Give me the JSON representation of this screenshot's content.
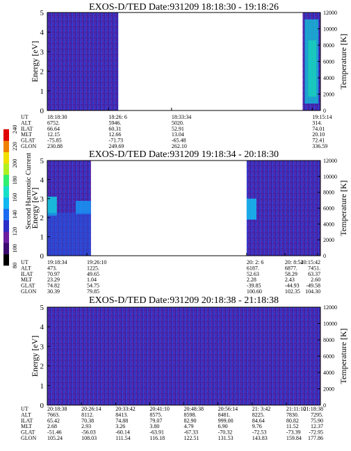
{
  "colorbar": {
    "label": "Second Harmonic Current",
    "ticks": [
      "80",
      "100",
      "120",
      "140",
      "160",
      "180",
      "200",
      "220",
      "240"
    ],
    "colors": [
      "#000000",
      "#3b0a6e",
      "#6a1ea0",
      "#2a2fc8",
      "#1a6cf0",
      "#10b8f0",
      "#18e0c8",
      "#30f070",
      "#b0f020",
      "#f0e000",
      "#f08000",
      "#e00000"
    ]
  },
  "chart_data": [
    {
      "type": "heatmap",
      "title": "EXOS-D/TED Date:931209 18:18:30 - 19:18:26",
      "ylabel": "Energy [eV]",
      "y2label": "Temperature [K]",
      "ylim": [
        0,
        5
      ],
      "y2lim": [
        0,
        12000
      ],
      "yticks": [
        "0",
        "1",
        "2",
        "3",
        "4",
        "5"
      ],
      "y2ticks": [
        "0",
        "2000",
        "4000",
        "6000",
        "8000",
        "10000",
        "12000"
      ],
      "data_segments": [
        [
          0.0,
          0.26
        ],
        [
          0.935,
          1.0
        ]
      ],
      "row_labels": [
        "UT",
        "ALT",
        "ILAT",
        "MLT",
        "GLAT",
        "GLON"
      ],
      "columns": [
        {
          "pos": 0.0,
          "values": [
            "18:18:30",
            "6752.",
            "66.64",
            "12.15",
            "-75.85",
            "230.88"
          ]
        },
        {
          "pos": 0.225,
          "values": [
            "18:26: 6",
            "5946.",
            "60.31",
            "12.66",
            "-71.73",
            "249.69"
          ]
        },
        {
          "pos": 0.455,
          "values": [
            "18:33:34",
            "5020.",
            "52.91",
            "13.04",
            "-65.48",
            "262.10"
          ]
        },
        {
          "pos": 0.97,
          "values": [
            "19:15:14",
            "314.",
            "74.01",
            "20.10",
            "72.41",
            "336.59"
          ]
        }
      ]
    },
    {
      "type": "heatmap",
      "title": "EXOS-D/TED Date:931209 19:18:34 - 20:18:30",
      "ylabel": "Energy [eV]",
      "y2label": "Temperature [K]",
      "ylim": [
        0,
        5
      ],
      "y2lim": [
        0,
        12000
      ],
      "yticks": [
        "0",
        "1",
        "2",
        "3",
        "4",
        "5"
      ],
      "y2ticks": [
        "0",
        "2000",
        "4000",
        "6000",
        "8000",
        "10000",
        "12000"
      ],
      "data_segments": [
        [
          0.0,
          0.16
        ],
        [
          0.73,
          1.0
        ]
      ],
      "row_labels": [
        "UT",
        "ALT",
        "ILAT",
        "MLT",
        "GLAT",
        "GLON"
      ],
      "columns": [
        {
          "pos": 0.0,
          "values": [
            "19:18:34",
            "473.",
            "70.97",
            "23.29",
            "74.82",
            "30.39"
          ]
        },
        {
          "pos": 0.145,
          "values": [
            "19:26:10",
            "1225.",
            "49.65",
            "1.04",
            "54.75",
            "79.85"
          ]
        },
        {
          "pos": 0.73,
          "values": [
            "20: 2: 6",
            "6187.",
            "52.63",
            "2.28",
            "-39.85",
            "100.60"
          ]
        },
        {
          "pos": 0.87,
          "values": [
            "20: 8:54",
            "6877.",
            "58.29",
            "2.43",
            "-44.93",
            "102.35"
          ]
        },
        {
          "pos": 0.99,
          "values": [
            "20:15:42",
            "7451.",
            "63.37",
            "2.60",
            "-49.58",
            "104.30"
          ]
        }
      ]
    },
    {
      "type": "heatmap",
      "title": "EXOS-D/TED Date:931209 20:18:38 - 21:18:38",
      "ylabel": "Energy [eV]",
      "y2label": "Temperature [K]",
      "ylim": [
        0,
        5
      ],
      "y2lim": [
        0,
        12000
      ],
      "yticks": [
        "0",
        "1",
        "2",
        "3",
        "4",
        "5"
      ],
      "y2ticks": [
        "0",
        "2000",
        "4000",
        "6000",
        "8000",
        "10000",
        "12000"
      ],
      "data_segments": [
        [
          0.0,
          1.0
        ]
      ],
      "row_labels": [
        "UT",
        "ALT",
        "ILAT",
        "MLT",
        "GLAT",
        "GLON"
      ],
      "columns": [
        {
          "pos": 0.0,
          "values": [
            "20:18:38",
            "7663.",
            "65.42",
            "2.68",
            "-51.46",
            "105.24"
          ]
        },
        {
          "pos": 0.125,
          "values": [
            "20:26:14",
            "8112.",
            "70.38",
            "2.93",
            "-56.03",
            "108.03"
          ]
        },
        {
          "pos": 0.25,
          "values": [
            "20:33:42",
            "8413.",
            "74.88",
            "3.26",
            "-60.14",
            "111.54"
          ]
        },
        {
          "pos": 0.375,
          "values": [
            "20:41:10",
            "8575.",
            "79.07",
            "3.80",
            "-63.91",
            "116.18"
          ]
        },
        {
          "pos": 0.5,
          "values": [
            "20:48:38",
            "8598.",
            "82.90",
            "4.79",
            "-67.33",
            "122.51"
          ]
        },
        {
          "pos": 0.625,
          "values": [
            "20:56:14",
            "8481.",
            "999.00",
            "6.90",
            "-70.32",
            "131.53"
          ]
        },
        {
          "pos": 0.75,
          "values": [
            "21: 3:42",
            "8225.",
            "84.64",
            "9.76",
            "-72.53",
            "143.83"
          ]
        },
        {
          "pos": 0.875,
          "values": [
            "21:11:10",
            "7830.",
            "80.82",
            "11.52",
            "-73.39",
            "159.84"
          ]
        },
        {
          "pos": 1.0,
          "values": [
            "21:18:38",
            "7295.",
            "75.90",
            "12.37",
            "-72.95",
            "177.86"
          ]
        }
      ]
    }
  ]
}
